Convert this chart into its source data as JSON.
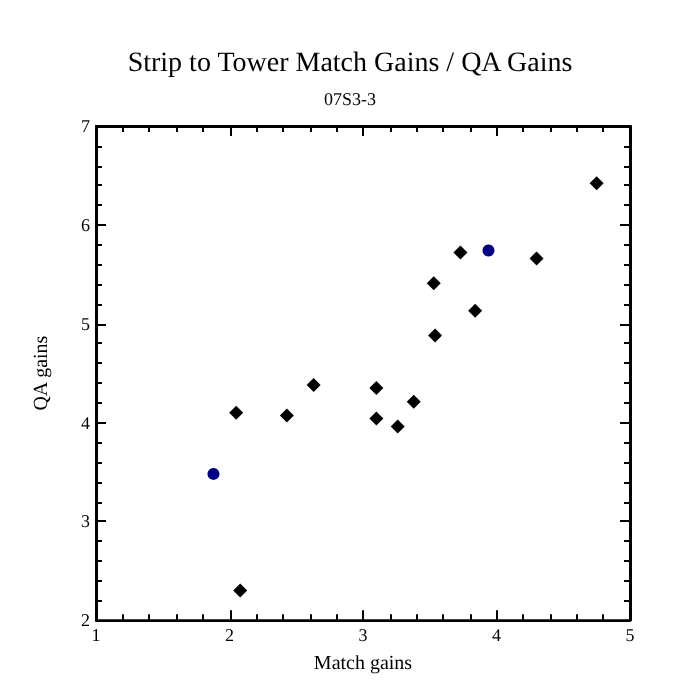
{
  "chart_data": {
    "type": "scatter",
    "title": "Strip to Tower Match Gains / QA Gains",
    "subtitle": "07S3-3",
    "xlabel": "Match gains",
    "ylabel": "QA gains",
    "xlim": [
      1,
      5
    ],
    "xticks": [
      1,
      2,
      3,
      4,
      5
    ],
    "ylim": [
      2,
      7
    ],
    "yticks": [
      2,
      3,
      4,
      5,
      6,
      7
    ],
    "grid": false,
    "series": [
      {
        "color": "#000000",
        "marker": "diamond",
        "x": [
          2.05,
          2.08,
          2.43,
          2.63,
          3.1,
          3.1,
          3.26,
          3.38,
          3.53,
          3.54,
          3.73,
          3.84,
          4.3,
          4.75
        ],
        "values": [
          4.1,
          2.3,
          4.07,
          4.38,
          4.35,
          4.04,
          3.96,
          4.21,
          5.41,
          4.88,
          5.72,
          5.13,
          5.66,
          6.42
        ]
      },
      {
        "color": "#000080",
        "marker": "circle",
        "x": [
          1.88,
          3.94
        ],
        "values": [
          3.48,
          5.74
        ]
      }
    ]
  }
}
